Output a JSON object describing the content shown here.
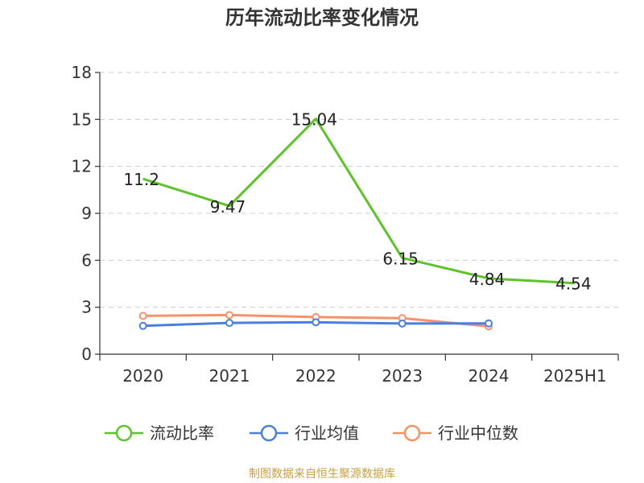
{
  "chart_data": {
    "type": "line",
    "title": "历年流动比率变化情况",
    "categories": [
      "2020",
      "2021",
      "2022",
      "2023",
      "2024",
      "2025H1"
    ],
    "ylim": [
      0,
      18
    ],
    "yticks": [
      0,
      3,
      6,
      9,
      12,
      15,
      18
    ],
    "grid": true,
    "legend_position": "bottom",
    "series": [
      {
        "name": "流动比率",
        "color": "#5ec22a",
        "values": [
          11.2,
          9.47,
          15.04,
          6.15,
          4.84,
          4.54
        ],
        "labels": [
          "11.2",
          "9.47",
          "15.04",
          "6.15",
          "4.84",
          "4.54"
        ],
        "show_labels": true,
        "marker": false
      },
      {
        "name": "行业均值",
        "color": "#4a7fe0",
        "values": [
          1.81,
          2.0,
          2.04,
          1.96,
          1.97,
          null
        ],
        "show_labels": false,
        "marker": true
      },
      {
        "name": "行业中位数",
        "color": "#f5926a",
        "values": [
          2.45,
          2.5,
          2.37,
          2.3,
          1.78,
          null
        ],
        "show_labels": false,
        "marker": true
      }
    ]
  },
  "source": "制图数据来自恒生聚源数据库"
}
